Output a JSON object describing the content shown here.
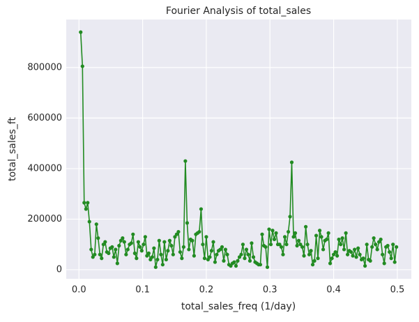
{
  "chart_data": {
    "type": "line",
    "title": "Fourier Analysis of total_sales",
    "xlabel": "total_sales_freq (1/day)",
    "ylabel": "total_sales_ft",
    "x": [
      0.0027,
      0.0055,
      0.0082,
      0.011,
      0.0137,
      0.0164,
      0.0192,
      0.0219,
      0.0247,
      0.0274,
      0.0301,
      0.0329,
      0.0356,
      0.0384,
      0.0411,
      0.0438,
      0.0466,
      0.0493,
      0.0521,
      0.0548,
      0.0575,
      0.0603,
      0.063,
      0.0658,
      0.0685,
      0.0712,
      0.074,
      0.0767,
      0.0795,
      0.0822,
      0.0849,
      0.0877,
      0.0904,
      0.0932,
      0.0959,
      0.0986,
      0.1014,
      0.1041,
      0.1068,
      0.1096,
      0.1123,
      0.1151,
      0.1178,
      0.1205,
      0.1233,
      0.126,
      0.1288,
      0.1315,
      0.1342,
      0.137,
      0.1397,
      0.1425,
      0.1452,
      0.1479,
      0.1507,
      0.1534,
      0.1562,
      0.1589,
      0.1616,
      0.1644,
      0.1671,
      0.1699,
      0.1726,
      0.1753,
      0.1781,
      0.1808,
      0.1836,
      0.1863,
      0.189,
      0.1918,
      0.1945,
      0.1973,
      0.2,
      0.2027,
      0.2055,
      0.2082,
      0.211,
      0.2137,
      0.2164,
      0.2192,
      0.2219,
      0.2247,
      0.2274,
      0.2301,
      0.2329,
      0.2356,
      0.2384,
      0.2411,
      0.2438,
      0.2466,
      0.2493,
      0.2521,
      0.2548,
      0.2575,
      0.2603,
      0.263,
      0.2658,
      0.2685,
      0.2712,
      0.274,
      0.2767,
      0.2795,
      0.2822,
      0.2849,
      0.2877,
      0.2904,
      0.2932,
      0.2959,
      0.2986,
      0.3014,
      0.3041,
      0.3068,
      0.3096,
      0.3123,
      0.3151,
      0.3178,
      0.3205,
      0.3233,
      0.326,
      0.3288,
      0.3315,
      0.3342,
      0.337,
      0.3397,
      0.3425,
      0.3452,
      0.3479,
      0.3507,
      0.3534,
      0.3562,
      0.3589,
      0.3616,
      0.3644,
      0.3671,
      0.3699,
      0.3726,
      0.3753,
      0.3781,
      0.3808,
      0.3836,
      0.3863,
      0.389,
      0.3918,
      0.3945,
      0.3973,
      0.4,
      0.4027,
      0.4055,
      0.4082,
      0.411,
      0.4137,
      0.4164,
      0.4192,
      0.4219,
      0.4247,
      0.4274,
      0.4301,
      0.4329,
      0.4356,
      0.4384,
      0.4411,
      0.4438,
      0.4466,
      0.4493,
      0.4521,
      0.4548,
      0.4575,
      0.4603,
      0.463,
      0.4658,
      0.4685,
      0.4712,
      0.474,
      0.4767,
      0.4795,
      0.4822,
      0.4849,
      0.4877,
      0.4904,
      0.4932,
      0.4959,
      0.4986
    ],
    "series": [
      {
        "color": "#228b22",
        "values": [
          940000,
          805000,
          265000,
          240000,
          265000,
          190000,
          80000,
          50000,
          60000,
          180000,
          125000,
          60000,
          45000,
          100000,
          110000,
          70000,
          65000,
          85000,
          90000,
          50000,
          80000,
          25000,
          95000,
          115000,
          125000,
          110000,
          60000,
          80000,
          100000,
          105000,
          140000,
          65000,
          45000,
          110000,
          90000,
          75000,
          100000,
          130000,
          55000,
          65000,
          40000,
          50000,
          85000,
          10000,
          40000,
          115000,
          60000,
          20000,
          110000,
          40000,
          75000,
          115000,
          95000,
          60000,
          130000,
          140000,
          150000,
          70000,
          45000,
          90000,
          430000,
          185000,
          80000,
          120000,
          115000,
          55000,
          140000,
          145000,
          150000,
          240000,
          100000,
          45000,
          130000,
          40000,
          50000,
          75000,
          110000,
          30000,
          60000,
          75000,
          80000,
          90000,
          35000,
          80000,
          60000,
          20000,
          15000,
          25000,
          30000,
          15000,
          35000,
          50000,
          60000,
          100000,
          45000,
          80000,
          60000,
          35000,
          105000,
          50000,
          30000,
          25000,
          20000,
          20000,
          140000,
          95000,
          90000,
          10000,
          160000,
          100000,
          155000,
          120000,
          145000,
          100000,
          100000,
          90000,
          60000,
          130000,
          100000,
          150000,
          210000,
          425000,
          130000,
          145000,
          95000,
          115000,
          100000,
          90000,
          55000,
          170000,
          100000,
          60000,
          75000,
          20000,
          35000,
          135000,
          45000,
          155000,
          130000,
          80000,
          115000,
          120000,
          145000,
          25000,
          45000,
          60000,
          70000,
          55000,
          120000,
          100000,
          125000,
          80000,
          145000,
          60000,
          75000,
          70000,
          55000,
          80000,
          50000,
          85000,
          60000,
          40000,
          45000,
          15000,
          100000,
          40000,
          35000,
          90000,
          125000,
          100000,
          80000,
          110000,
          120000,
          60000,
          25000,
          90000,
          95000,
          70000,
          45000,
          100000,
          30000,
          90000
        ]
      }
    ],
    "xlim": [
      -0.02,
      0.522
    ],
    "xticks": [
      {
        "value": 0,
        "label": "0.0"
      },
      0.1,
      0.2,
      0.3,
      0.4,
      0.5
    ],
    "ylim": [
      -36000,
      990000
    ],
    "yticks": [
      0,
      200000,
      400000,
      600000,
      800000
    ],
    "grid": true
  }
}
